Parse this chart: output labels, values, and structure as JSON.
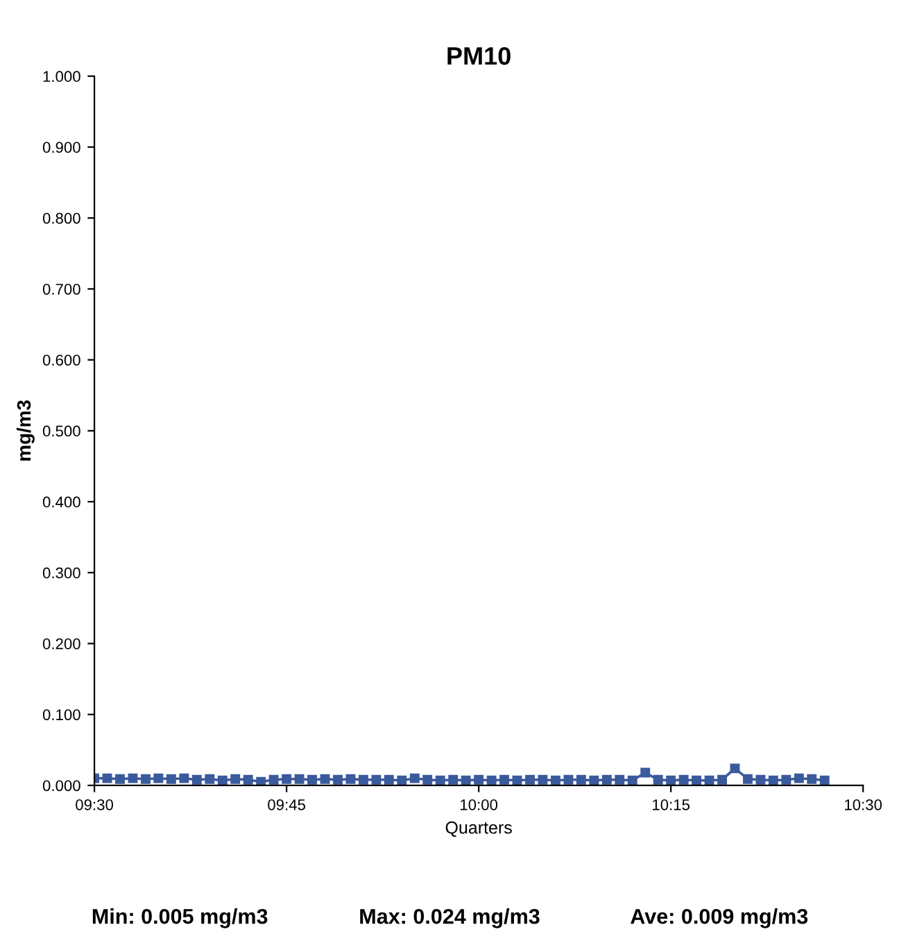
{
  "chart_data": {
    "type": "line",
    "title": "PM10",
    "xlabel": "Quarters",
    "ylabel": "mg/m3",
    "x": [
      9.5,
      9.5167,
      9.5333,
      9.55,
      9.5667,
      9.5833,
      9.6,
      9.6167,
      9.6333,
      9.65,
      9.6667,
      9.6833,
      9.7,
      9.7167,
      9.7333,
      9.75,
      9.7667,
      9.7833,
      9.8,
      9.8167,
      9.8333,
      9.85,
      9.8667,
      9.8833,
      9.9,
      9.9167,
      9.9333,
      9.95,
      9.9667,
      9.9833,
      10.0,
      10.0167,
      10.0333,
      10.05,
      10.0667,
      10.0833,
      10.1,
      10.1167,
      10.1333,
      10.15,
      10.1667,
      10.1833,
      10.2,
      10.2167,
      10.2333,
      10.25,
      10.2667,
      10.2833,
      10.3,
      10.3167,
      10.3333,
      10.35,
      10.3667,
      10.3833,
      10.4,
      10.4167,
      10.4333,
      10.45
    ],
    "series": [
      {
        "color": "#3a5a9c",
        "values": [
          0.01,
          0.01,
          0.009,
          0.01,
          0.009,
          0.01,
          0.009,
          0.01,
          0.008,
          0.009,
          0.007,
          0.009,
          0.008,
          0.005,
          0.008,
          0.009,
          0.009,
          0.008,
          0.009,
          0.008,
          0.009,
          0.008,
          0.008,
          0.008,
          0.007,
          0.01,
          0.008,
          0.007,
          0.008,
          0.007,
          0.008,
          0.007,
          0.008,
          0.007,
          0.008,
          0.008,
          0.007,
          0.008,
          0.008,
          0.007,
          0.008,
          0.008,
          0.007,
          0.018,
          0.008,
          0.007,
          0.008,
          0.007,
          0.007,
          0.008,
          0.024,
          0.009,
          0.008,
          0.007,
          0.008,
          0.01,
          0.009,
          0.007
        ]
      }
    ],
    "xlim": [
      9.5,
      10.5
    ],
    "xticks": [
      {
        "value": 9.5,
        "label": "09:30"
      },
      {
        "value": 9.75,
        "label": "09:45"
      },
      {
        "value": 10.0,
        "label": "10:00"
      },
      {
        "value": 10.25,
        "label": "10:15"
      },
      {
        "value": 10.5,
        "label": "10:30"
      }
    ],
    "ylim": [
      0,
      1
    ],
    "yticks": [
      {
        "value": 0,
        "label": "0.000"
      },
      {
        "value": 0.1,
        "label": "0.100"
      },
      {
        "value": 0.2,
        "label": "0.200"
      },
      {
        "value": 0.3,
        "label": "0.300"
      },
      {
        "value": 0.4,
        "label": "0.400"
      },
      {
        "value": 0.5,
        "label": "0.500"
      },
      {
        "value": 0.6,
        "label": "0.600"
      },
      {
        "value": 0.7,
        "label": "0.700"
      },
      {
        "value": 0.8,
        "label": "0.800"
      },
      {
        "value": 0.9,
        "label": "0.900"
      },
      {
        "value": 1.0,
        "label": "1.000"
      }
    ],
    "marker": "square",
    "line_style": "solid",
    "grid": false,
    "annotations": [
      "Min: 0.005 mg/m3",
      "Max: 0.024 mg/m3",
      "Ave: 0.009 mg/m3"
    ]
  }
}
